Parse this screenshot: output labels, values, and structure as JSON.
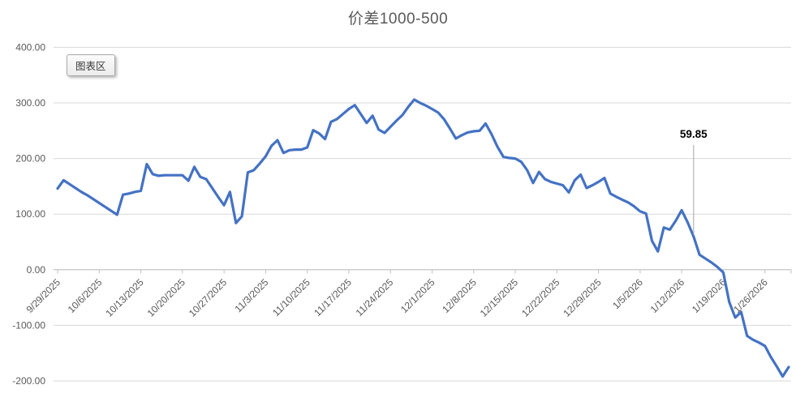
{
  "window": {
    "background": "#ffffff"
  },
  "tooltip": {
    "label": "图表区"
  },
  "chart_data": {
    "type": "line",
    "title": "价差1000-500",
    "grid": true,
    "legend_shown": false,
    "x_axis": {
      "tick_labels": [
        "9/29/2025",
        "10/6/2025",
        "10/13/2025",
        "10/20/2025",
        "10/27/2025",
        "11/3/2025",
        "11/10/2025",
        "11/17/2025",
        "11/24/2025",
        "12/1/2025",
        "12/8/2025",
        "12/15/2025",
        "12/22/2025",
        "12/29/2025",
        "1/5/2026",
        "1/12/2026",
        "1/19/2026",
        "1/26/2026"
      ],
      "ticks_every_n_points": 7,
      "label_rotation_deg": -45
    },
    "y_axis": {
      "min": -200,
      "max": 400,
      "ticks": [
        {
          "label": "400.00",
          "value": 400
        },
        {
          "label": "300.00",
          "value": 300
        },
        {
          "label": "200.00",
          "value": 200
        },
        {
          "label": "100.00",
          "value": 100
        },
        {
          "label": "0.00",
          "value": 0
        },
        {
          "label": "-100.00",
          "value": -100
        },
        {
          "label": "-200.00",
          "value": -200
        }
      ]
    },
    "series": {
      "color": "#4472C4",
      "dates": [
        "9/29/2025",
        "9/30/2025",
        "10/1/2025",
        "10/2/2025",
        "10/3/2025",
        "10/4/2025",
        "10/5/2025",
        "10/6/2025",
        "10/7/2025",
        "10/8/2025",
        "10/9/2025",
        "10/10/2025",
        "10/11/2025",
        "10/12/2025",
        "10/13/2025",
        "10/14/2025",
        "10/15/2025",
        "10/16/2025",
        "10/17/2025",
        "10/18/2025",
        "10/19/2025",
        "10/20/2025",
        "10/21/2025",
        "10/22/2025",
        "10/23/2025",
        "10/24/2025",
        "10/25/2025",
        "10/26/2025",
        "10/27/2025",
        "10/28/2025",
        "10/29/2025",
        "10/30/2025",
        "10/31/2025",
        "11/1/2025",
        "11/2/2025",
        "11/3/2025",
        "11/4/2025",
        "11/5/2025",
        "11/6/2025",
        "11/7/2025",
        "11/8/2025",
        "11/9/2025",
        "11/10/2025",
        "11/11/2025",
        "11/12/2025",
        "11/13/2025",
        "11/14/2025",
        "11/15/2025",
        "11/16/2025",
        "11/17/2025",
        "11/18/2025",
        "11/19/2025",
        "11/20/2025",
        "11/21/2025",
        "11/22/2025",
        "11/23/2025",
        "11/24/2025",
        "11/25/2025",
        "11/26/2025",
        "11/27/2025",
        "11/28/2025",
        "11/29/2025",
        "11/30/2025",
        "12/1/2025",
        "12/2/2025",
        "12/3/2025",
        "12/4/2025",
        "12/5/2025",
        "12/6/2025",
        "12/7/2025",
        "12/8/2025",
        "12/9/2025",
        "12/10/2025",
        "12/11/2025",
        "12/12/2025",
        "12/13/2025",
        "12/14/2025",
        "12/15/2025",
        "12/16/2025",
        "12/17/2025",
        "12/18/2025",
        "12/19/2025",
        "12/20/2025",
        "12/21/2025",
        "12/22/2025",
        "12/23/2025",
        "12/24/2025",
        "12/25/2025",
        "12/26/2025",
        "12/27/2025",
        "12/28/2025",
        "12/29/2025",
        "12/30/2025",
        "12/31/2025",
        "1/1/2026",
        "1/2/2026",
        "1/3/2026",
        "1/4/2026",
        "1/5/2026",
        "1/6/2026",
        "1/7/2026",
        "1/8/2026",
        "1/9/2026",
        "1/10/2026",
        "1/11/2026",
        "1/12/2026",
        "1/13/2026",
        "1/14/2026",
        "1/15/2026",
        "1/16/2026",
        "1/17/2026",
        "1/18/2026",
        "1/19/2026",
        "1/20/2026",
        "1/21/2026",
        "1/22/2026",
        "1/23/2026",
        "1/24/2026",
        "1/25/2026",
        "1/26/2026",
        "1/27/2026",
        "1/28/2026",
        "1/29/2026",
        "1/30/2026"
      ],
      "values": [
        146,
        161,
        154,
        147,
        140,
        134,
        127,
        120,
        113,
        106,
        99,
        135,
        137,
        140,
        142,
        190,
        172,
        169,
        170,
        170,
        170,
        170,
        160,
        185,
        167,
        163,
        147,
        131,
        116,
        140,
        84,
        96,
        175,
        179,
        191,
        204,
        223,
        233,
        210,
        215,
        216,
        216,
        220,
        251,
        245,
        235,
        266,
        271,
        280,
        289,
        296,
        280,
        264,
        277,
        252,
        246,
        257,
        268,
        278,
        293,
        306,
        300,
        295,
        289,
        283,
        271,
        254,
        236,
        242,
        247,
        249,
        250,
        263,
        244,
        221,
        203,
        201,
        200,
        194,
        179,
        156,
        176,
        163,
        158,
        155,
        152,
        139,
        161,
        171,
        147,
        152,
        158,
        165,
        137,
        131,
        126,
        121,
        114,
        105,
        101,
        52,
        33,
        76,
        72,
        88,
        107,
        85,
        59.85,
        27,
        20,
        13,
        5,
        -5,
        -58,
        -86,
        -76,
        -119,
        -126,
        -131,
        -137,
        -157,
        -174,
        -192,
        -175
      ]
    },
    "annotation": {
      "text": "59.85",
      "point_index": 107,
      "date": "1/14/2026"
    },
    "colors": {
      "line": "#4472C4",
      "gridline": "#d9d9d9",
      "axis_line": "#bfbfbf",
      "axis_label": "#595959",
      "title": "#595959",
      "annotation_text": "#000000",
      "leader_line": "#a6a6a6"
    }
  }
}
